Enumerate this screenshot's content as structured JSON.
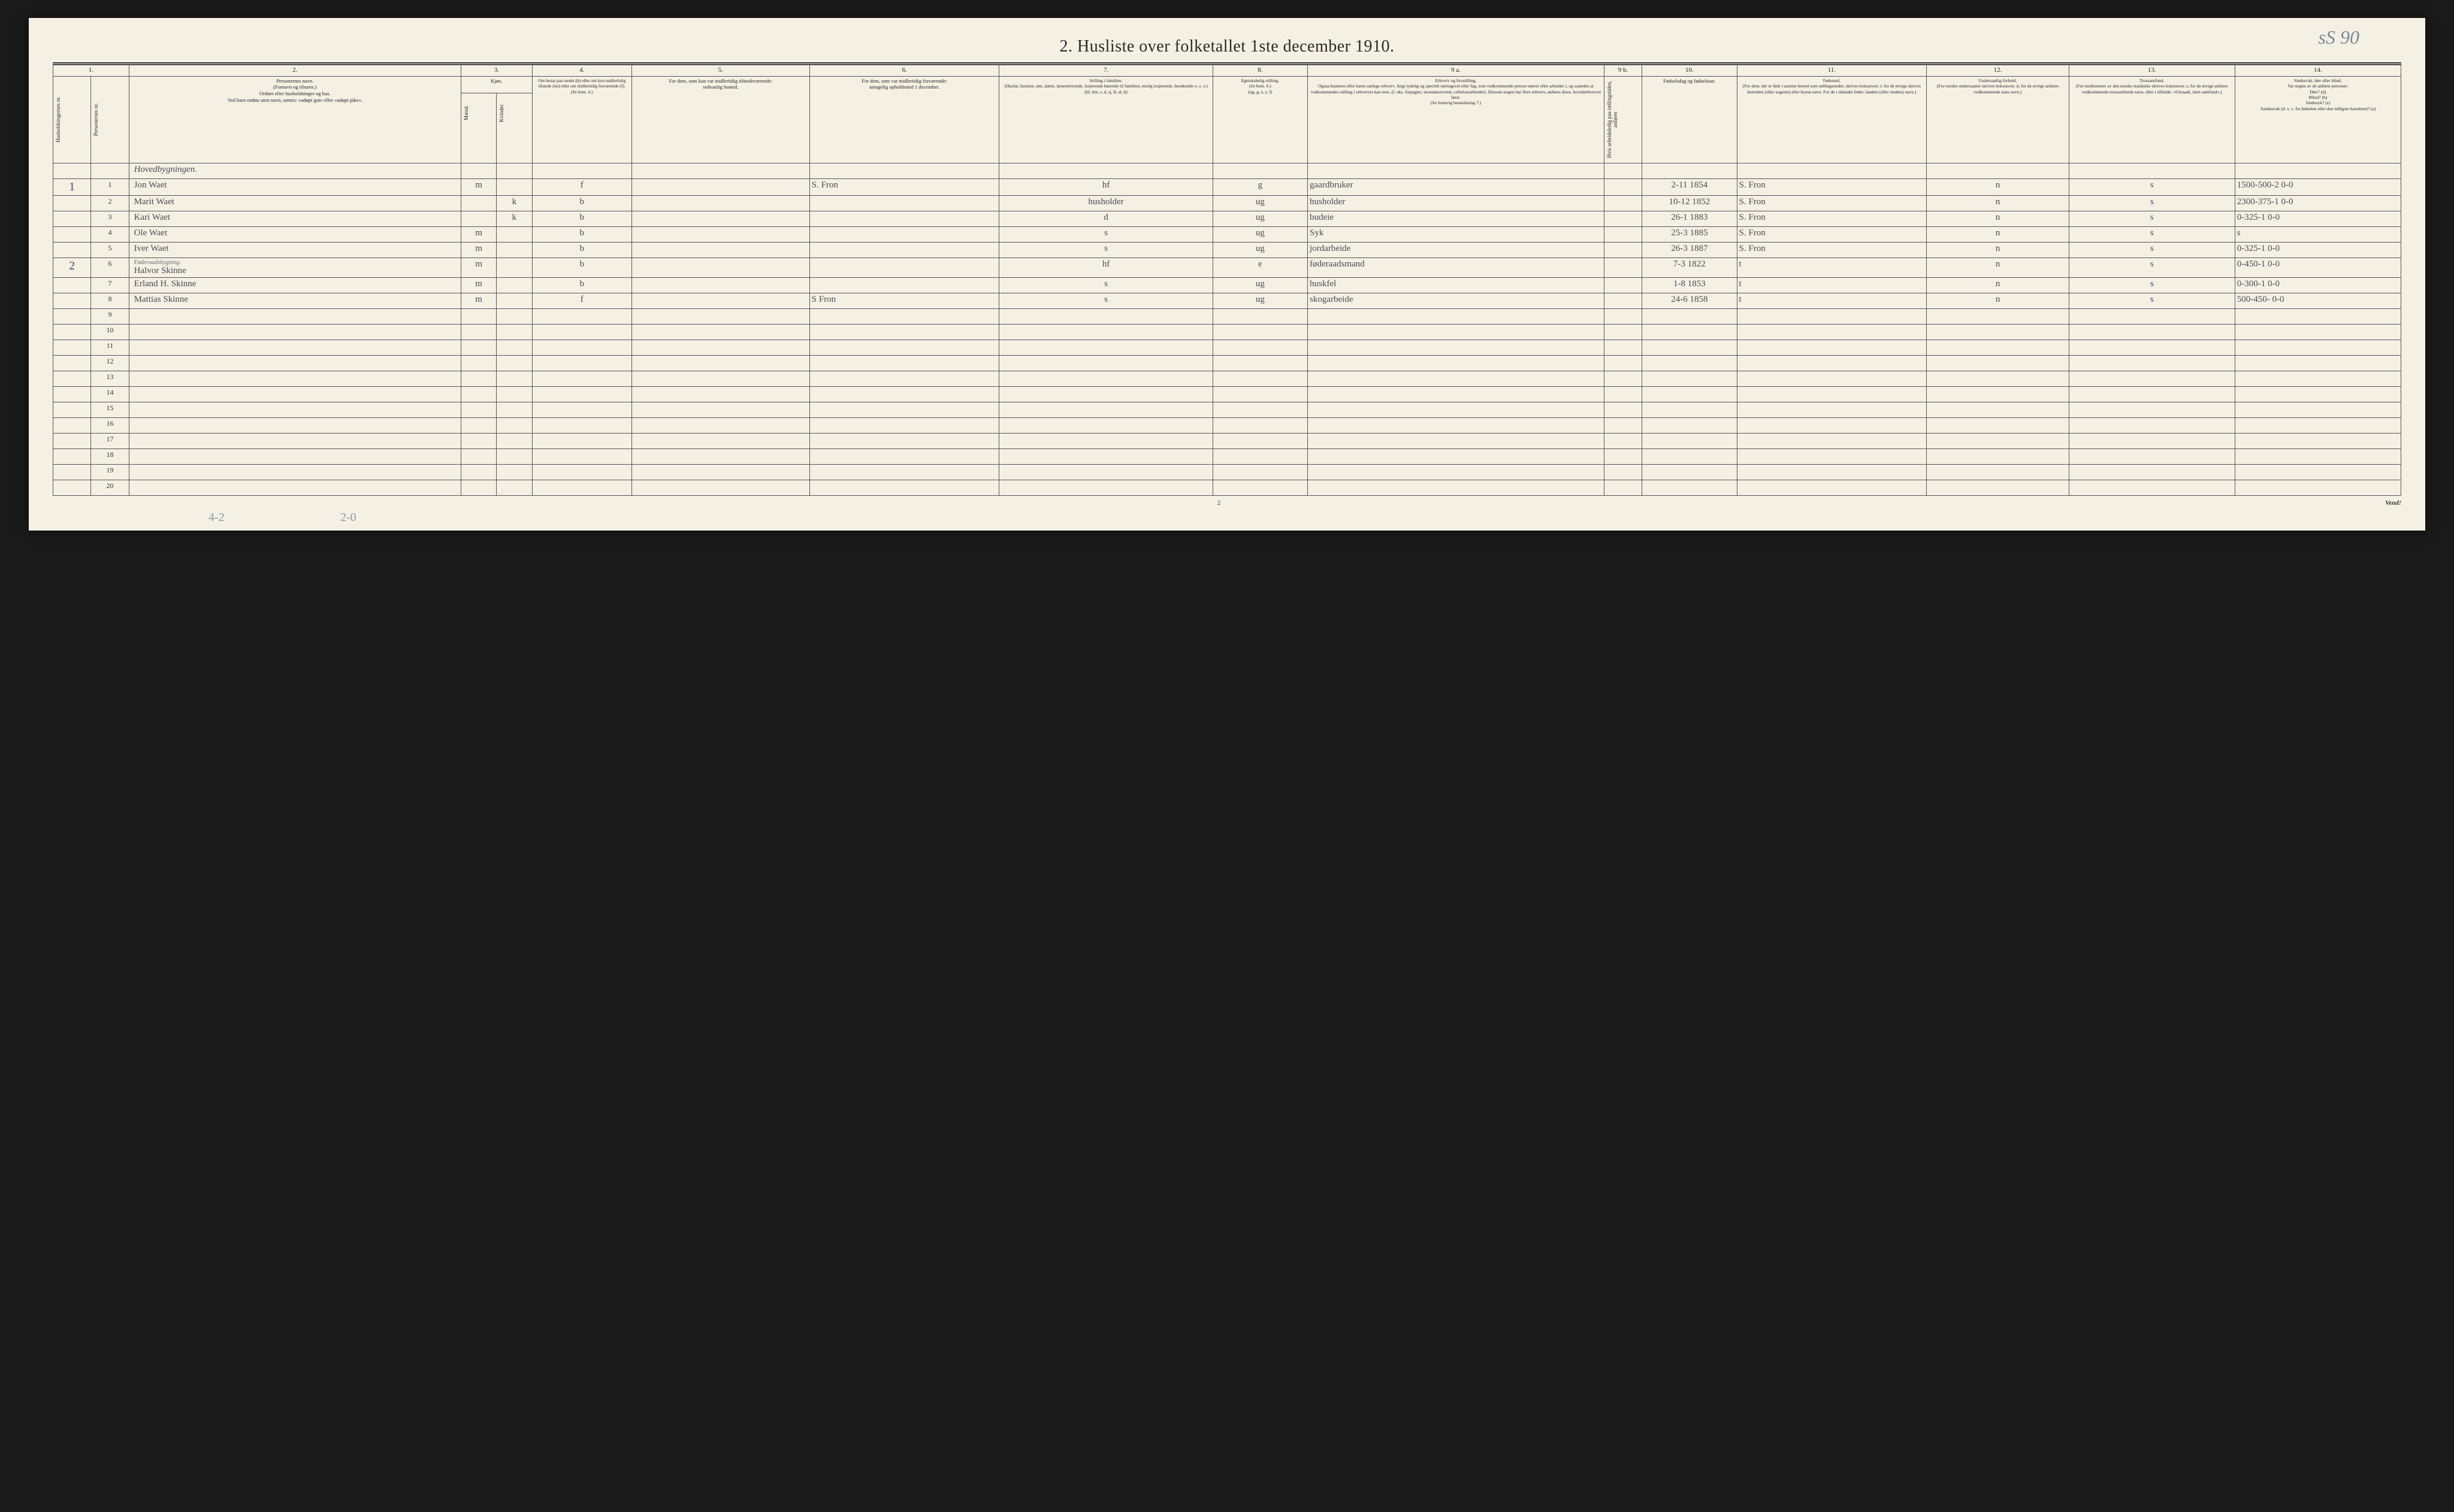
{
  "annotation_top": "sS 90",
  "title": "2.  Husliste over folketallet 1ste december 1910.",
  "col_numbers": [
    "1.",
    "2.",
    "3.",
    "4.",
    "5.",
    "6.",
    "7.",
    "8.",
    "9 a.",
    "9 b.",
    "10.",
    "11.",
    "12.",
    "13.",
    "14."
  ],
  "headers": {
    "c1a": "Husholdningernes nr.",
    "c1b": "Personernes nr.",
    "c2": "Personernes navn.\n(Fornavn og tilnavn.)\nOrdnet efter husholdninger og hus.\nVed barn endnu uten navn, sættes: «udøpt gut» eller «udøpt pike».",
    "c3": "Kjøn.",
    "c3a": "Mænd.",
    "c3b": "Kvinder.",
    "c4": "Om bosat paa stedet (b) eller om kun midlertidig tilstede (mt) eller om midlertidig fraværende (f).\n(Se bem. 4.)",
    "c5": "For dem, som kun var midlertidig tilstedeværende:\nsedvanlig bosted.",
    "c6": "For dem, som var midlertidig fraværende:\nantagelig opholdssted 1 december.",
    "c7": "Stilling i familien.\n(Husfar, husmor, søn, datter, tjenestetyende, losjerende hørende til familien, enslig losjerende, besøkende o. s. v.)\n(hf, hm, s, d, tj, fl, el, b)",
    "c8": "Egteskabelig stilling.\n(Se bem. 6.)\n(ug, g, e, s, f)",
    "c9a": "Erhverv og livsstilling.\nOgsaa husmors eller barns særlige erhverv. Angi tydelig og specielt næringsvei eller fag, som vedkommende person utøver eller arbeider i, og saaledes at vedkommendes stilling i erhvervet kan sees, (f. eks. forpagter, skomakersvend, cellulosearbeider). Dersom nogen har flere erhverv, anføres disse, hovederhvervet først.\n(Se forøvrig bemerkning 7.)",
    "c9b": "Hvis arbeidsledig paa tællingstiden, anføres",
    "c10": "Fødselsdag og fødselsaar.",
    "c11": "Fødested.\n(For dem, der er født i samme herred som tællingsstedet, skrives bokstaven: t; for de øvrige skrives herredets (eller sognets) eller byens navn. For de i utlandet fødte: landets (eller stedets) navn.)",
    "c12": "Undersaatlig forhold.\n(For norske undersaatter skrives bokstaven: n; for de øvrige anføres vedkommende stats navn.)",
    "c13": "Trossamfund.\n(For medlemmer av den norske statskirke skrives bokstaven: s; for de øvrige anføres vedkommende trossamfunds navn, eller i tilfælde: «Uttraadt, intet samfund».)",
    "c14": "Sindssvak, døv eller blind.\nVar nogen av de anførte personer:\nDøv? (d)\nBlind? (b)\nSindssyk? (s)\nAandssvak (d. v. s. fra fødselen eller den tidligste barndom)? (a)"
  },
  "section_label": "Hovedbygningen.",
  "section2_label": "Føderaadsbygning.",
  "rows": [
    {
      "hh": "1",
      "pn": "1",
      "name": "Jon Waet",
      "m": "m",
      "k": "",
      "res": "f",
      "c5": "",
      "c6": "S. Fron",
      "c7": "hf",
      "c8": "g",
      "c9": "gaardbruker",
      "c10": "2-11 1854",
      "c11": "S. Fron",
      "c12": "n",
      "c13": "s",
      "c14": "1500-500-2  0-0"
    },
    {
      "hh": "",
      "pn": "2",
      "name": "Marit Waet",
      "m": "",
      "k": "k",
      "res": "b",
      "c5": "",
      "c6": "",
      "c7": "husholder",
      "c8": "ug",
      "c9": "husholder",
      "c10": "10-12 1852",
      "c11": "S. Fron",
      "c12": "n",
      "c13": "s",
      "c14": "2300-375-1  0-0"
    },
    {
      "hh": "",
      "pn": "3",
      "name": "Kari Waet",
      "m": "",
      "k": "k",
      "res": "b",
      "c5": "",
      "c6": "",
      "c7": "d",
      "c8": "ug",
      "c9": "budeie",
      "c10": "26-1 1883",
      "c11": "S. Fron",
      "c12": "n",
      "c13": "s",
      "c14": "0-325-1  0-0"
    },
    {
      "hh": "",
      "pn": "4",
      "name": "Ole Waet",
      "m": "m",
      "k": "",
      "res": "b",
      "c5": "",
      "c6": "",
      "c7": "s",
      "c8": "ug",
      "c9": "Syk",
      "c10": "25-3 1885",
      "c11": "S. Fron",
      "c12": "n",
      "c13": "s",
      "c14": "s"
    },
    {
      "hh": "",
      "pn": "5",
      "name": "Iver Waet",
      "m": "m",
      "k": "",
      "res": "b",
      "c5": "",
      "c6": "",
      "c7": "s",
      "c8": "ug",
      "c9": "jordarbeide",
      "c10": "26-3 1887",
      "c11": "S. Fron",
      "c12": "n",
      "c13": "s",
      "c14": "0-325-1  0-0"
    },
    {
      "hh": "2",
      "pn": "6",
      "name": "Halvor Skinne",
      "m": "m",
      "k": "",
      "res": "b",
      "c5": "",
      "c6": "",
      "c7": "hf",
      "c8": "e",
      "c9": "føderaadsmand",
      "c10": "7-3 1822",
      "c11": "t",
      "c12": "n",
      "c13": "s",
      "c14": "0-450-1  0-0"
    },
    {
      "hh": "",
      "pn": "7",
      "name": "Erland H. Skinne",
      "m": "m",
      "k": "",
      "res": "b",
      "c5": "",
      "c6": "",
      "c7": "s",
      "c8": "ug",
      "c9": "huskfel",
      "c10": "1-8 1853",
      "c11": "t",
      "c12": "n",
      "c13": "s",
      "c14": "0-300-1  0-0"
    },
    {
      "hh": "",
      "pn": "8",
      "name": "Mattias Skinne",
      "m": "m",
      "k": "",
      "res": "f",
      "c5": "",
      "c6": "S Fron",
      "c7": "s",
      "c8": "ug",
      "c9": "skogarbeide",
      "c10": "24-6 1858",
      "c11": "t",
      "c12": "n",
      "c13": "s",
      "c14": "500-450-  0-0"
    }
  ],
  "empty_row_numbers": [
    "9",
    "10",
    "11",
    "12",
    "13",
    "14",
    "15",
    "16",
    "17",
    "18",
    "19",
    "20"
  ],
  "footer": {
    "page": "2",
    "vend": "Vend!"
  },
  "bottom_pencil1": "4-2",
  "bottom_pencil2": "2-0"
}
